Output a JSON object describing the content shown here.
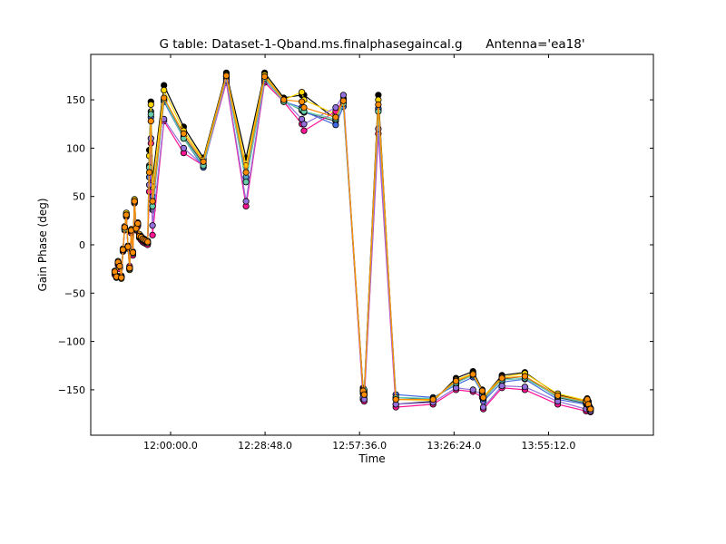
{
  "chart_data": {
    "type": "line",
    "title": "G table: Dataset-1-Qband.ms.finalphasegaincal.g      Antenna='ea18'",
    "xlabel": "Time",
    "ylabel": "Gain Phase (deg)",
    "xlim_seconds_of_day": [
      41740,
      52030
    ],
    "ylim": [
      -197,
      197
    ],
    "grid": false,
    "legend": "none",
    "x_ticks": [
      {
        "value": 43200,
        "label": "12:00:00.0"
      },
      {
        "value": 44928,
        "label": "12:28:48.0"
      },
      {
        "value": 46656,
        "label": "12:57:36.0"
      },
      {
        "value": 48384,
        "label": "13:26:24.0"
      },
      {
        "value": 50112,
        "label": "13:55:12.0"
      }
    ],
    "y_ticks": [
      {
        "value": 150,
        "label": "150"
      },
      {
        "value": 100,
        "label": "100"
      },
      {
        "value": 50,
        "label": "50"
      },
      {
        "value": 0,
        "label": "0"
      },
      {
        "value": -50,
        "label": "−50"
      },
      {
        "value": -100,
        "label": "−100"
      },
      {
        "value": -150,
        "label": "−150"
      }
    ],
    "x_seconds_of_day": [
      42180,
      42210,
      42240,
      42270,
      42300,
      42330,
      42360,
      42390,
      42420,
      42450,
      42480,
      42510,
      42540,
      42570,
      42600,
      42630,
      42660,
      42690,
      42720,
      42750,
      42780,
      42810,
      42840,
      42870,
      43080,
      43440,
      43800,
      44220,
      44580,
      44920,
      45270,
      45600,
      45640,
      46220,
      46360,
      46720,
      46740,
      47000,
      47320,
      48000,
      48420,
      48730,
      48900,
      48920,
      49260,
      49680,
      50280,
      50800,
      50820,
      50840,
      50860,
      50880
    ],
    "series": [
      {
        "color": "#000000",
        "values": [
          -28,
          -33,
          -18,
          -22,
          -34,
          -5,
          18,
          32,
          -2,
          -25,
          15,
          -8,
          46,
          18,
          22,
          10,
          8,
          6,
          5,
          4,
          3,
          98,
          148,
          68,
          165,
          122,
          90,
          178,
          90,
          178,
          152,
          155,
          155,
          130,
          150,
          -148,
          -152,
          155,
          -165,
          -162,
          -138,
          -131,
          -150,
          -158,
          -135,
          -132,
          -155,
          -162,
          -160,
          -168,
          -172,
          -170
        ]
      },
      {
        "color": "#2f4f4f",
        "values": [
          -29,
          -32,
          -19,
          -23,
          -33,
          -4,
          17,
          31,
          -3,
          -24,
          14,
          -9,
          45,
          17,
          21,
          9,
          7,
          5,
          4,
          3,
          2,
          82,
          138,
          36,
          150,
          112,
          84,
          174,
          65,
          171,
          149,
          139,
          137,
          128,
          147,
          -151,
          -156,
          139,
          -158,
          -160,
          -142,
          -134,
          -152,
          -160,
          -139,
          -136,
          -158,
          -164,
          -161,
          -165,
          -170,
          -171
        ]
      },
      {
        "color": "#4169e1",
        "values": [
          -30,
          -32,
          -20,
          -24,
          -32,
          -5,
          16,
          30,
          -4,
          -23,
          13,
          -10,
          44,
          16,
          20,
          8,
          6,
          4,
          3,
          2,
          1,
          70,
          132,
          50,
          148,
          110,
          80,
          172,
          70,
          172,
          148,
          142,
          138,
          124,
          143,
          -154,
          -159,
          141,
          -155,
          -158,
          -145,
          -137,
          -153,
          -162,
          -142,
          -139,
          -160,
          -165,
          -162,
          -164,
          -169,
          -170
        ]
      },
      {
        "color": "#ffd700",
        "values": [
          -27,
          -34,
          -17,
          -21,
          -35,
          -6,
          19,
          33,
          -1,
          -26,
          16,
          -7,
          47,
          19,
          23,
          11,
          9,
          7,
          6,
          5,
          4,
          92,
          145,
          60,
          160,
          118,
          88,
          176,
          82,
          176,
          150,
          158,
          150,
          135,
          152,
          -150,
          -154,
          150,
          -160,
          -161,
          -140,
          -133,
          -151,
          -157,
          -137,
          -133,
          -154,
          -161,
          -159,
          -166,
          -171,
          -169
        ]
      },
      {
        "color": "#ff1493",
        "values": [
          -31,
          -33,
          -21,
          -25,
          -33,
          -7,
          15,
          29,
          -3,
          -22,
          12,
          -11,
          43,
          15,
          19,
          7,
          5,
          3,
          2,
          1,
          0,
          55,
          105,
          10,
          128,
          95,
          82,
          168,
          40,
          168,
          148,
          125,
          118,
          138,
          150,
          -160,
          -162,
          115,
          -168,
          -165,
          -150,
          -152,
          -158,
          -170,
          -148,
          -150,
          -165,
          -172,
          -167,
          -162,
          -168,
          -173
        ]
      },
      {
        "color": "#9370db",
        "values": [
          -28,
          -32,
          -18,
          -23,
          -34,
          -6,
          17,
          31,
          -2,
          -24,
          14,
          -8,
          45,
          17,
          22,
          9,
          7,
          5,
          4,
          3,
          2,
          62,
          110,
          20,
          130,
          100,
          82,
          170,
          45,
          170,
          150,
          130,
          125,
          142,
          155,
          -158,
          -160,
          120,
          -165,
          -163,
          -148,
          -150,
          -155,
          -168,
          -146,
          -147,
          -162,
          -170,
          -165,
          -163,
          -167,
          -172
        ]
      },
      {
        "color": "#66cdaa",
        "values": [
          -29,
          -33,
          -19,
          -22,
          -33,
          -5,
          16,
          30,
          -2,
          -25,
          15,
          -9,
          44,
          16,
          21,
          8,
          7,
          5,
          4,
          3,
          2,
          80,
          135,
          40,
          150,
          110,
          82,
          174,
          65,
          172,
          148,
          140,
          138,
          130,
          146,
          -152,
          -150,
          138,
          -158,
          -159,
          -143,
          -135,
          -152,
          -159,
          -140,
          -138,
          -157,
          -163,
          -160,
          -164,
          -168,
          -170
        ]
      },
      {
        "color": "#ff8c00",
        "values": [
          -28,
          -33,
          -18,
          -22,
          -34,
          -5,
          18,
          31,
          -2,
          -24,
          15,
          -8,
          45,
          17,
          22,
          9,
          8,
          6,
          5,
          4,
          3,
          75,
          128,
          45,
          152,
          115,
          86,
          175,
          75,
          174,
          150,
          148,
          142,
          132,
          149,
          -151,
          -155,
          145,
          -160,
          -160,
          -141,
          -134,
          -151,
          -158,
          -138,
          -136,
          -156,
          -162,
          -160,
          -165,
          -170,
          -170
        ]
      }
    ]
  }
}
